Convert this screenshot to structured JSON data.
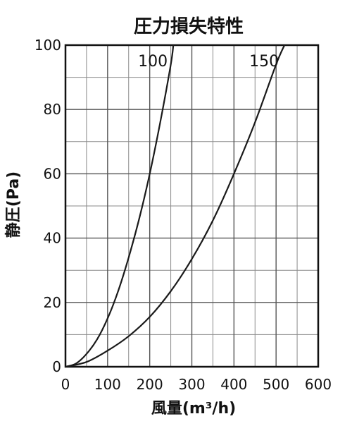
{
  "chart_data": {
    "type": "line",
    "title": "圧力損失特性",
    "xlabel": "風量(m³/h)",
    "ylabel": "静圧(Pa)",
    "xlim": [
      0,
      600
    ],
    "ylim": [
      0,
      100
    ],
    "x_ticks": [
      0,
      100,
      200,
      300,
      400,
      500,
      600
    ],
    "y_ticks": [
      0,
      20,
      40,
      60,
      80,
      100
    ],
    "x_minor_step": 50,
    "y_minor_step": 10,
    "grid": true,
    "legend": "none (curves labelled inline at top)",
    "series": [
      {
        "name": "100",
        "x": [
          0,
          25,
          50,
          75,
          100,
          125,
          150,
          175,
          200,
          225,
          250,
          256
        ],
        "y": [
          0,
          1,
          4,
          8.5,
          15,
          23.5,
          34,
          46,
          60,
          76,
          94,
          100
        ]
      },
      {
        "name": "150",
        "x": [
          0,
          50,
          100,
          150,
          200,
          250,
          300,
          350,
          400,
          450,
          500,
          520
        ],
        "y": [
          0,
          1.5,
          5,
          9.5,
          15.5,
          23.5,
          33.5,
          45.5,
          60,
          76,
          94,
          100
        ]
      }
    ]
  }
}
